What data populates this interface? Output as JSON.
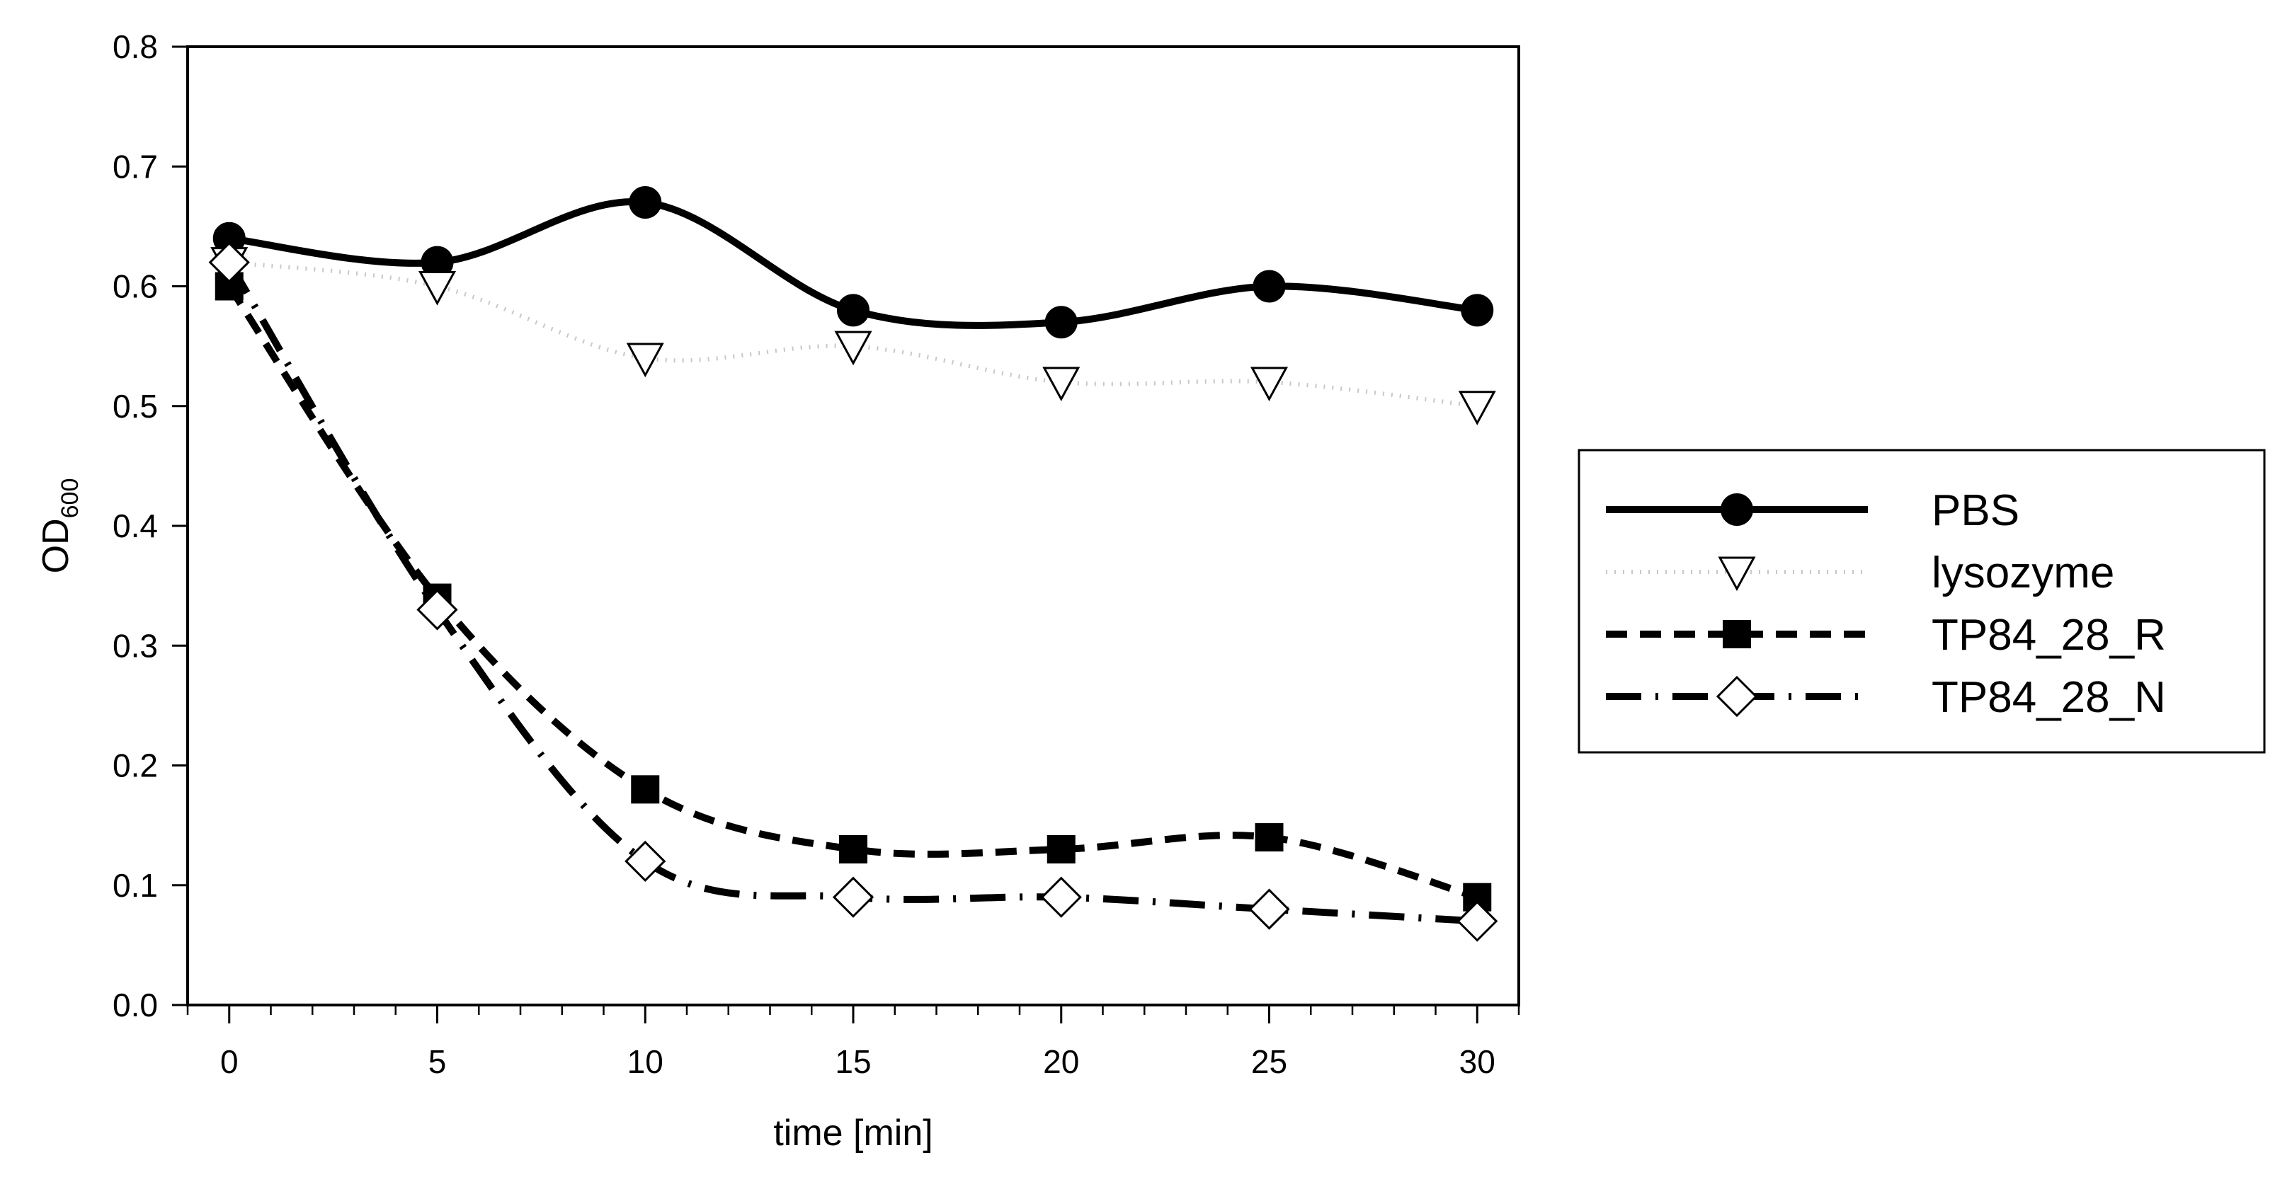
{
  "chart_data": {
    "type": "line",
    "title": "",
    "xlabel": "time [min]",
    "ylabel_main": "OD",
    "ylabel_sub": "600",
    "xlim": [
      -1,
      31
    ],
    "ylim": [
      0.0,
      0.8
    ],
    "xticks": [
      0,
      5,
      10,
      15,
      20,
      25,
      30
    ],
    "xtick_labels": [
      "0",
      "5",
      "10",
      "15",
      "20",
      "25",
      "30"
    ],
    "yticks": [
      0.0,
      0.1,
      0.2,
      0.3,
      0.4,
      0.5,
      0.6,
      0.7,
      0.8
    ],
    "ytick_labels": [
      "0.0",
      "0.1",
      "0.2",
      "0.3",
      "0.4",
      "0.5",
      "0.6",
      "0.7",
      "0.8"
    ],
    "grid": false,
    "legend_position": "right",
    "x": [
      0,
      5,
      10,
      15,
      20,
      25,
      30
    ],
    "series": [
      {
        "name": "PBS",
        "values": [
          0.64,
          0.62,
          0.67,
          0.58,
          0.57,
          0.6,
          0.58
        ],
        "line": "solid",
        "marker": "circle-filled",
        "color": "#000000"
      },
      {
        "name": "lysozyme",
        "values": [
          0.62,
          0.6,
          0.54,
          0.55,
          0.52,
          0.52,
          0.5
        ],
        "line": "dotted-light",
        "marker": "triangle-down-open",
        "color": "#c8c8c8"
      },
      {
        "name": "TP84_28_R",
        "values": [
          0.6,
          0.34,
          0.18,
          0.13,
          0.13,
          0.14,
          0.09
        ],
        "line": "dashed",
        "marker": "square-filled",
        "color": "#000000"
      },
      {
        "name": "TP84_28_N",
        "values": [
          0.62,
          0.33,
          0.12,
          0.09,
          0.09,
          0.08,
          0.07
        ],
        "line": "dash-dot",
        "marker": "diamond-open",
        "color": "#000000"
      }
    ]
  }
}
